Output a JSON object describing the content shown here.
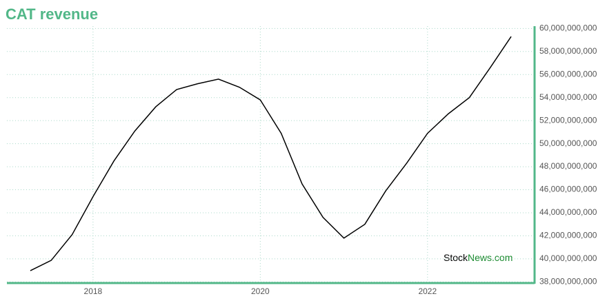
{
  "chart_data": {
    "type": "line",
    "title": "CAT revenue",
    "watermark": [
      "Stock",
      "News.com"
    ],
    "x": [
      2017.25,
      2017.5,
      2017.75,
      2018.0,
      2018.25,
      2018.5,
      2018.75,
      2019.0,
      2019.25,
      2019.5,
      2019.75,
      2020.0,
      2020.25,
      2020.5,
      2020.75,
      2021.0,
      2021.25,
      2021.5,
      2021.75,
      2022.0,
      2022.25,
      2022.5,
      2022.75,
      2023.0
    ],
    "values": [
      38970000000,
      39870000000,
      42100000000,
      45400000000,
      48500000000,
      51100000000,
      53200000000,
      54700000000,
      55200000000,
      55600000000,
      54900000000,
      53800000000,
      50900000000,
      46500000000,
      43600000000,
      41800000000,
      43000000000,
      45900000000,
      48300000000,
      50900000000,
      52600000000,
      54000000000,
      56600000000,
      59300000000
    ],
    "color": "#000000",
    "xlim": [
      2016.97,
      2023.28
    ],
    "xticks": [
      2018,
      2020,
      2022
    ],
    "ylim": [
      37900000000,
      60200000000
    ],
    "yticks": [
      {
        "value": 38000000000,
        "label": "38,000,000,000"
      },
      {
        "value": 40000000000,
        "label": "40,000,000,000"
      },
      {
        "value": 42000000000,
        "label": "42,000,000,000"
      },
      {
        "value": 44000000000,
        "label": "44,000,000,000"
      },
      {
        "value": 46000000000,
        "label": "46,000,000,000"
      },
      {
        "value": 48000000000,
        "label": "48,000,000,000"
      },
      {
        "value": 50000000000,
        "label": "50,000,000,000"
      },
      {
        "value": 52000000000,
        "label": "52,000,000,000"
      },
      {
        "value": 54000000000,
        "label": "54,000,000,000"
      },
      {
        "value": 56000000000,
        "label": "56,000,000,000"
      },
      {
        "value": 58000000000,
        "label": "58,000,000,000"
      },
      {
        "value": 60000000000,
        "label": "60,000,000,000"
      }
    ],
    "grid": true
  }
}
